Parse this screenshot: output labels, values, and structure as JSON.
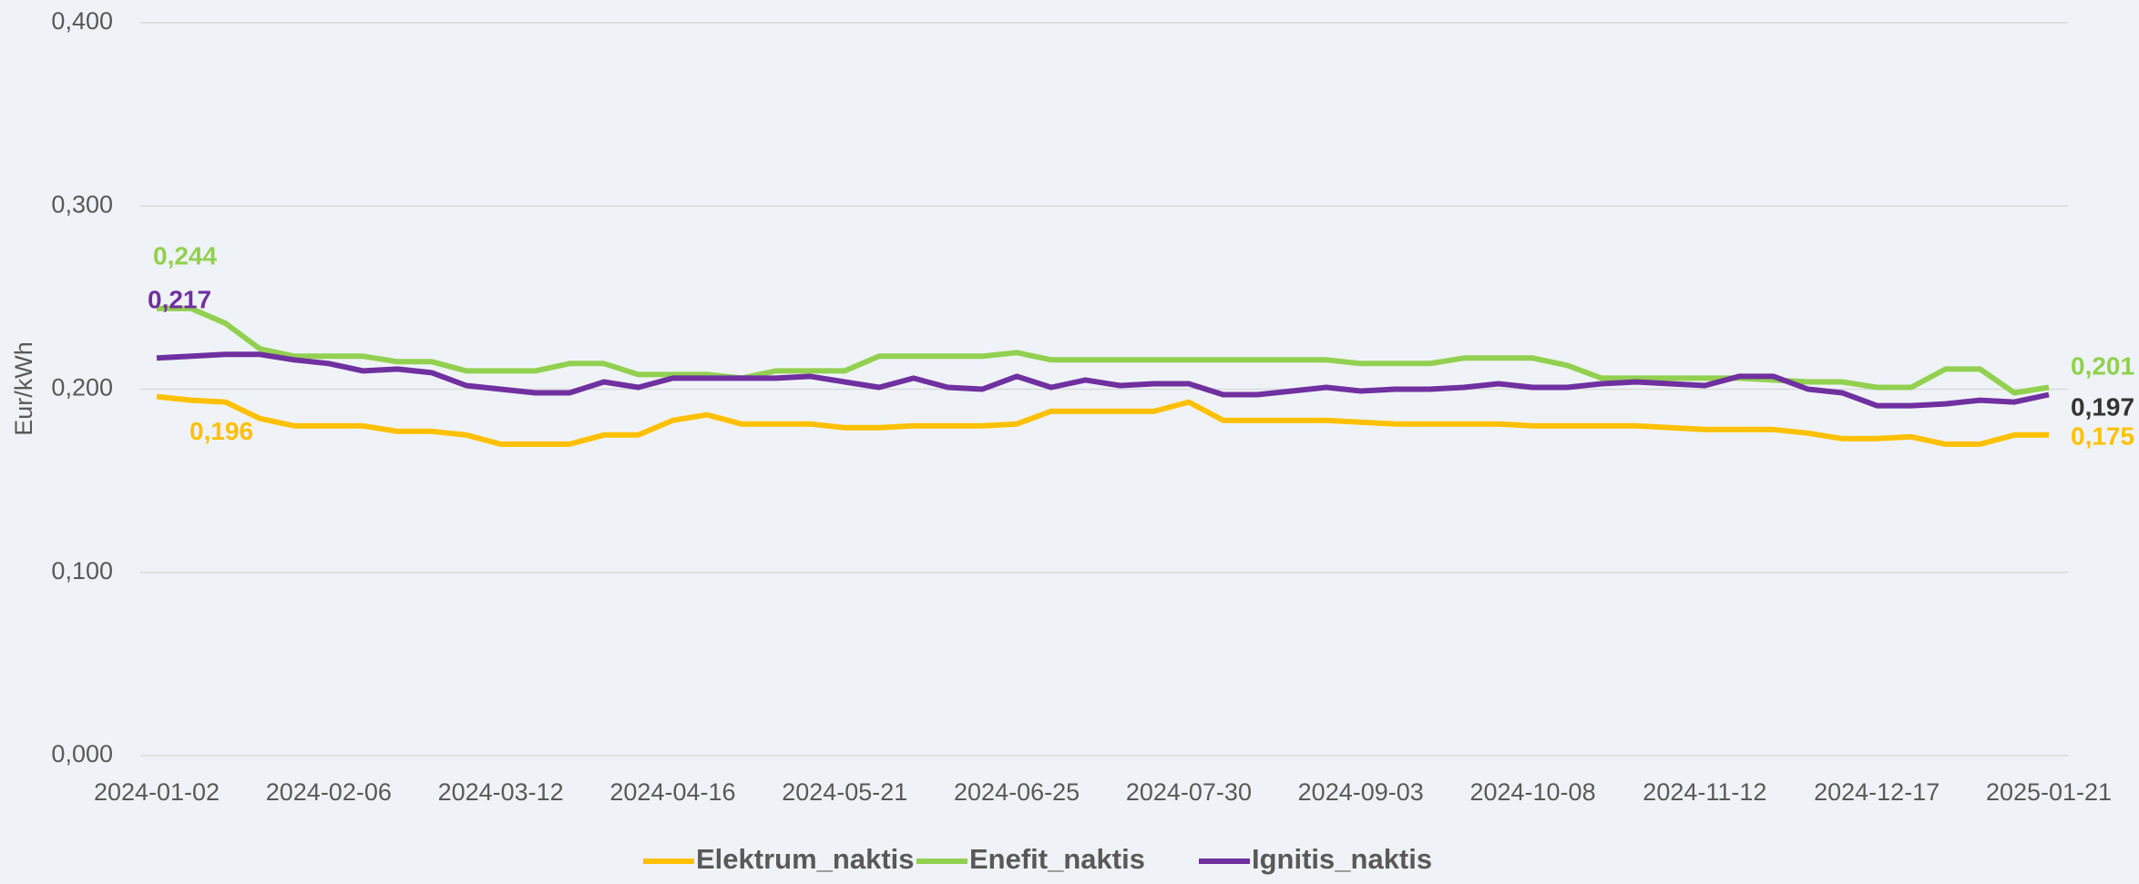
{
  "chart_data": {
    "type": "line",
    "y_label": "Eur/kWh",
    "categories": [
      "2024-01-02",
      null,
      null,
      null,
      null,
      "2024-02-06",
      null,
      null,
      null,
      null,
      "2024-03-12",
      null,
      null,
      null,
      null,
      "2024-04-16",
      null,
      null,
      null,
      null,
      "2024-05-21",
      null,
      null,
      null,
      null,
      "2024-06-25",
      null,
      null,
      null,
      null,
      "2024-07-30",
      null,
      null,
      null,
      null,
      "2024-09-03",
      null,
      null,
      null,
      null,
      "2024-10-08",
      null,
      null,
      null,
      null,
      "2024-11-12",
      null,
      null,
      null,
      null,
      "2024-12-17",
      null,
      null,
      null,
      null,
      "2025-01-21"
    ],
    "series": [
      {
        "name": "Elektrum_naktis",
        "color": "#ffc000",
        "values": [
          0.196,
          0.194,
          0.193,
          0.184,
          0.18,
          0.18,
          0.18,
          0.177,
          0.177,
          0.175,
          0.17,
          0.17,
          0.17,
          0.175,
          0.175,
          0.183,
          0.186,
          0.181,
          0.181,
          0.181,
          0.179,
          0.179,
          0.18,
          0.18,
          0.18,
          0.181,
          0.188,
          0.188,
          0.188,
          0.188,
          0.193,
          0.183,
          0.183,
          0.183,
          0.183,
          0.182,
          0.181,
          0.181,
          0.181,
          0.181,
          0.18,
          0.18,
          0.18,
          0.18,
          0.179,
          0.178,
          0.178,
          0.178,
          0.176,
          0.173,
          0.173,
          0.174,
          0.17,
          0.17,
          0.175,
          0.175
        ],
        "value_labels": [
          "0,196",
          null,
          null,
          null,
          null,
          null,
          null,
          null,
          null,
          null,
          null,
          null,
          null,
          null,
          null,
          null,
          null,
          null,
          null,
          null,
          null,
          null,
          null,
          null,
          null,
          null,
          null,
          null,
          null,
          null,
          null,
          null,
          null,
          null,
          null,
          null,
          null,
          null,
          null,
          null,
          null,
          null,
          null,
          null,
          null,
          null,
          null,
          null,
          null,
          null,
          null,
          null,
          null,
          null,
          null,
          "0,175"
        ]
      },
      {
        "name": "Enefit_naktis",
        "color": "#92d050",
        "values": [
          0.244,
          0.244,
          0.236,
          0.222,
          0.218,
          0.218,
          0.218,
          0.215,
          0.215,
          0.21,
          0.21,
          0.21,
          0.214,
          0.214,
          0.208,
          0.208,
          0.208,
          0.206,
          0.21,
          0.21,
          0.21,
          0.218,
          0.218,
          0.218,
          0.218,
          0.22,
          0.216,
          0.216,
          0.216,
          0.216,
          0.216,
          0.216,
          0.216,
          0.216,
          0.216,
          0.214,
          0.214,
          0.214,
          0.217,
          0.217,
          0.217,
          0.213,
          0.206,
          0.206,
          0.206,
          0.206,
          0.206,
          0.205,
          0.204,
          0.204,
          0.201,
          0.201,
          0.211,
          0.211,
          0.198,
          0.201
        ],
        "value_labels": [
          "0,244",
          null,
          null,
          null,
          null,
          null,
          null,
          null,
          null,
          null,
          null,
          null,
          null,
          null,
          null,
          null,
          null,
          null,
          null,
          null,
          null,
          null,
          null,
          null,
          null,
          null,
          null,
          null,
          null,
          null,
          null,
          null,
          null,
          null,
          null,
          null,
          null,
          null,
          null,
          null,
          null,
          null,
          null,
          null,
          null,
          null,
          null,
          null,
          null,
          null,
          null,
          null,
          null,
          null,
          null,
          "0,201"
        ]
      },
      {
        "name": "Ignitis_naktis",
        "color": "#7030a0",
        "values": [
          0.217,
          0.218,
          0.219,
          0.219,
          0.216,
          0.214,
          0.21,
          0.211,
          0.209,
          0.202,
          0.2,
          0.198,
          0.198,
          0.204,
          0.201,
          0.206,
          0.206,
          0.206,
          0.206,
          0.207,
          0.204,
          0.201,
          0.206,
          0.201,
          0.2,
          0.207,
          0.201,
          0.205,
          0.202,
          0.203,
          0.203,
          0.197,
          0.197,
          0.199,
          0.201,
          0.199,
          0.2,
          0.2,
          0.201,
          0.203,
          0.201,
          0.201,
          0.203,
          0.204,
          0.203,
          0.202,
          0.207,
          0.207,
          0.2,
          0.198,
          0.191,
          0.191,
          0.192,
          0.194,
          0.193,
          0.197
        ],
        "value_labels": [
          "0,217",
          null,
          null,
          null,
          null,
          null,
          null,
          null,
          null,
          null,
          null,
          null,
          null,
          null,
          null,
          null,
          null,
          null,
          null,
          null,
          null,
          null,
          null,
          null,
          null,
          null,
          null,
          null,
          null,
          null,
          null,
          null,
          null,
          null,
          null,
          null,
          null,
          null,
          null,
          null,
          null,
          null,
          null,
          null,
          null,
          null,
          null,
          null,
          null,
          null,
          null,
          null,
          null,
          null,
          null,
          "0,197"
        ]
      }
    ],
    "ylim": [
      0,
      0.4
    ],
    "yticks": [
      {
        "value": 0,
        "label": "0,000"
      },
      {
        "value": 0.1,
        "label": "0,100"
      },
      {
        "value": 0.2,
        "label": "0,200"
      },
      {
        "value": 0.3,
        "label": "0,300"
      },
      {
        "value": 0.4,
        "label": "0,400"
      }
    ],
    "grid": true,
    "legend": "bottom"
  }
}
